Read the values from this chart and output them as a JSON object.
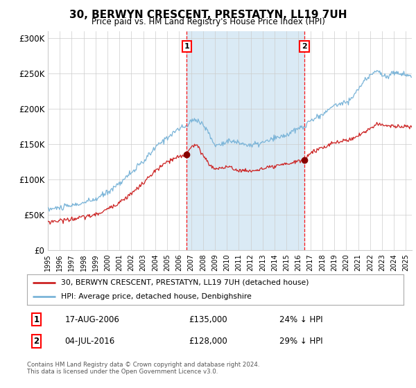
{
  "title": "30, BERWYN CRESCENT, PRESTATYN, LL19 7UH",
  "subtitle": "Price paid vs. HM Land Registry's House Price Index (HPI)",
  "ylabel_ticks": [
    "£0",
    "£50K",
    "£100K",
    "£150K",
    "£200K",
    "£250K",
    "£300K"
  ],
  "ytick_values": [
    0,
    50000,
    100000,
    150000,
    200000,
    250000,
    300000
  ],
  "ylim": [
    0,
    310000
  ],
  "xlim_start": 1995.0,
  "xlim_end": 2025.5,
  "hpi_color": "#7ab4d8",
  "hpi_fill_color": "#daeaf5",
  "price_color": "#cc2222",
  "marker1_date": 2006.63,
  "marker1_price": 135000,
  "marker1_label": "1",
  "marker2_date": 2016.5,
  "marker2_price": 128000,
  "marker2_label": "2",
  "legend_line1": "30, BERWYN CRESCENT, PRESTATYN, LL19 7UH (detached house)",
  "legend_line2": "HPI: Average price, detached house, Denbighshire",
  "footer": "Contains HM Land Registry data © Crown copyright and database right 2024.\nThis data is licensed under the Open Government Licence v3.0.",
  "background_color": "#ffffff",
  "grid_color": "#cccccc"
}
